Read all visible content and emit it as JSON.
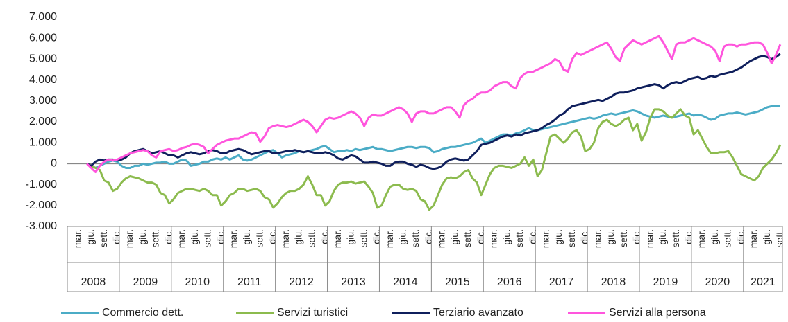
{
  "chart_data": {
    "type": "line",
    "categories": [
      null,
      null,
      "mar.",
      null,
      null,
      "giu.",
      null,
      null,
      "sett.",
      null,
      null,
      "dic.",
      null,
      null,
      "mar.",
      null,
      null,
      "giu.",
      null,
      null,
      "sett.",
      null,
      null,
      "dic.",
      null,
      null,
      "mar.",
      null,
      null,
      "giu.",
      null,
      null,
      "sett.",
      null,
      null,
      "dic.",
      null,
      null,
      "mar.",
      null,
      null,
      "giu.",
      null,
      null,
      "sett.",
      null,
      null,
      "dic.",
      null,
      null,
      "mar.",
      null,
      null,
      "giu.",
      null,
      null,
      "sett.",
      null,
      null,
      "dic.",
      null,
      null,
      "mar.",
      null,
      null,
      "giu.",
      null,
      null,
      "sett.",
      null,
      null,
      "dic.",
      null,
      null,
      "mar.",
      null,
      null,
      "giu.",
      null,
      null,
      "sett.",
      null,
      null,
      "dic.",
      null,
      null,
      "mar.",
      null,
      null,
      "giu.",
      null,
      null,
      "sett.",
      null,
      null,
      "dic.",
      null,
      null,
      "mar.",
      null,
      null,
      "giu.",
      null,
      null,
      "sett.",
      null,
      null,
      "dic.",
      null,
      null,
      "mar.",
      null,
      null,
      "giu.",
      null,
      null,
      "sett.",
      null,
      null,
      "dic.",
      null,
      null,
      "mar.",
      null,
      null,
      "giu.",
      null,
      null,
      "sett.",
      null,
      null,
      "dic.",
      null,
      null,
      "mar.",
      null,
      null,
      "giu.",
      null,
      null,
      "sett.",
      null,
      null,
      "dic.",
      null,
      null,
      "mar.",
      null,
      null,
      "giu.",
      null,
      null,
      "sett.",
      null,
      null,
      "dic.",
      null,
      null,
      "mar.",
      null,
      null,
      "giu.",
      null,
      null,
      "sett."
    ],
    "x_groups": [
      "2008",
      "2009",
      "2010",
      "2011",
      "2012",
      "2013",
      "2014",
      "2015",
      "2016",
      "2017",
      "2018",
      "2019",
      "2020",
      "2021"
    ],
    "ylim": [
      -3000,
      7000
    ],
    "yticks": [
      {
        "value": -3000,
        "label": "-3.000"
      },
      {
        "value": -2000,
        "label": "-2.000"
      },
      {
        "value": -1000,
        "label": "-1.000"
      },
      0,
      {
        "value": 1000,
        "label": "1.000"
      },
      {
        "value": 2000,
        "label": "2.000"
      },
      {
        "value": 3000,
        "label": "3.000"
      },
      {
        "value": 4000,
        "label": "4.000"
      },
      {
        "value": 5000,
        "label": "5.000"
      },
      {
        "value": 6000,
        "label": "6.000"
      },
      {
        "value": 7000,
        "label": "7.000"
      }
    ],
    "negative_tick_color": "#ff0000",
    "grid": false,
    "legend": "bottom",
    "series": [
      {
        "name": "Commercio dett.",
        "color": "#4bacc6",
        "values": [
          null,
          null,
          null,
          null,
          0,
          -100,
          -200,
          -100,
          0,
          100,
          150,
          100,
          -100,
          -200,
          -200,
          -100,
          -100,
          0,
          -50,
          0,
          50,
          50,
          100,
          0,
          0,
          100,
          200,
          150,
          -100,
          -50,
          0,
          100,
          100,
          200,
          250,
          200,
          300,
          200,
          300,
          400,
          200,
          150,
          200,
          300,
          400,
          500,
          600,
          650,
          500,
          300,
          400,
          450,
          500,
          600,
          550,
          600,
          650,
          700,
          800,
          850,
          700,
          550,
          600,
          600,
          650,
          600,
          700,
          650,
          700,
          750,
          800,
          700,
          700,
          650,
          600,
          650,
          700,
          750,
          800,
          800,
          750,
          800,
          800,
          750,
          550,
          600,
          700,
          750,
          800,
          800,
          850,
          900,
          950,
          1000,
          1100,
          1200,
          1000,
          1100,
          1200,
          1300,
          1400,
          1400,
          1350,
          1450,
          1500,
          1600,
          1700,
          1600,
          1600,
          1650,
          1700,
          1750,
          1800,
          1850,
          1900,
          1950,
          2000,
          2050,
          2100,
          2150,
          2200,
          2150,
          2200,
          2300,
          2350,
          2400,
          2350,
          2400,
          2450,
          2500,
          2550,
          2500,
          2400,
          2300,
          2250,
          2200,
          2250,
          2300,
          2250,
          2200,
          2250,
          2300,
          2350,
          2400,
          2300,
          2350,
          2300,
          2200,
          2100,
          2150,
          2300,
          2350,
          2400,
          2400,
          2450,
          2400,
          2350,
          2400,
          2450,
          2500,
          2600,
          2700,
          2750,
          2750,
          2750
        ]
      },
      {
        "name": "Servizi turistici",
        "color": "#8cbb4e",
        "values": [
          null,
          null,
          null,
          null,
          0,
          -100,
          -200,
          -300,
          -800,
          -900,
          -1300,
          -1200,
          -900,
          -700,
          -600,
          -650,
          -700,
          -800,
          -900,
          -900,
          -1000,
          -1400,
          -1500,
          -1900,
          -1700,
          -1400,
          -1300,
          -1200,
          -1200,
          -1250,
          -1300,
          -1200,
          -1300,
          -1500,
          -1500,
          -2000,
          -1800,
          -1500,
          -1400,
          -1200,
          -1200,
          -1300,
          -1250,
          -1200,
          -1300,
          -1600,
          -1700,
          -2100,
          -1900,
          -1600,
          -1400,
          -1300,
          -1300,
          -1200,
          -1000,
          -600,
          -1000,
          -1500,
          -1500,
          -2000,
          -1800,
          -1300,
          -1000,
          -900,
          -900,
          -850,
          -950,
          -900,
          -850,
          -1100,
          -1400,
          -2100,
          -2000,
          -1500,
          -1100,
          -1000,
          -1000,
          -1200,
          -1250,
          -1200,
          -1300,
          -1700,
          -1800,
          -2200,
          -2000,
          -1500,
          -1000,
          -700,
          -650,
          -700,
          -600,
          -400,
          -300,
          -700,
          -900,
          -1500,
          -1000,
          -500,
          -200,
          -100,
          -100,
          -150,
          -200,
          -100,
          0,
          300,
          -100,
          200,
          -600,
          -300,
          500,
          1300,
          1400,
          1200,
          1000,
          1200,
          1500,
          1600,
          1300,
          600,
          700,
          1000,
          1700,
          2000,
          2100,
          1900,
          1800,
          1900,
          2100,
          2200,
          1600,
          1900,
          1100,
          1500,
          2200,
          2600,
          2600,
          2500,
          2300,
          2200,
          2400,
          2600,
          2300,
          2200,
          1400,
          1600,
          1200,
          800,
          500,
          500,
          550,
          550,
          600,
          300,
          -100,
          -500,
          -600,
          -700,
          -800,
          -600,
          -200,
          0,
          200,
          500,
          900
        ]
      },
      {
        "name": "Terziario avanzato",
        "color": "#0f1f5c",
        "values": [
          null,
          null,
          null,
          null,
          0,
          -100,
          100,
          200,
          150,
          200,
          200,
          150,
          200,
          300,
          500,
          600,
          650,
          700,
          600,
          500,
          550,
          600,
          500,
          400,
          400,
          300,
          400,
          500,
          550,
          500,
          450,
          500,
          600,
          650,
          600,
          500,
          500,
          600,
          650,
          700,
          650,
          550,
          450,
          500,
          550,
          600,
          600,
          500,
          500,
          550,
          600,
          600,
          650,
          600,
          550,
          600,
          550,
          500,
          500,
          550,
          500,
          400,
          250,
          200,
          300,
          400,
          350,
          200,
          50,
          50,
          100,
          50,
          0,
          -100,
          -100,
          50,
          100,
          100,
          0,
          -50,
          -150,
          -50,
          -100,
          -200,
          -250,
          -200,
          -100,
          100,
          200,
          250,
          200,
          150,
          200,
          400,
          600,
          900,
          950,
          1000,
          1100,
          1200,
          1300,
          1350,
          1300,
          1400,
          1350,
          1450,
          1500,
          1550,
          1600,
          1700,
          1850,
          1950,
          2100,
          2300,
          2400,
          2600,
          2750,
          2800,
          2850,
          2900,
          2950,
          3000,
          3050,
          3000,
          3100,
          3200,
          3350,
          3400,
          3400,
          3450,
          3500,
          3600,
          3650,
          3700,
          3750,
          3800,
          3750,
          3600,
          3750,
          3850,
          3900,
          3850,
          3950,
          4050,
          4100,
          4150,
          4050,
          4100,
          4200,
          4150,
          4250,
          4300,
          4350,
          4400,
          4500,
          4600,
          4750,
          4900,
          5000,
          5100,
          5150,
          5100,
          5000,
          5100,
          5250
        ]
      },
      {
        "name": "Servizi alla persona",
        "color": "#ff55dd",
        "values": [
          null,
          null,
          null,
          null,
          0,
          -200,
          -400,
          -100,
          100,
          200,
          150,
          200,
          300,
          400,
          500,
          550,
          600,
          650,
          600,
          400,
          300,
          600,
          650,
          700,
          600,
          650,
          750,
          800,
          900,
          950,
          900,
          800,
          500,
          700,
          900,
          1000,
          1100,
          1150,
          1200,
          1200,
          1300,
          1400,
          1500,
          1450,
          1050,
          1300,
          1700,
          1800,
          1850,
          1800,
          1750,
          1800,
          1900,
          2000,
          2100,
          2000,
          1800,
          1500,
          1800,
          2100,
          2200,
          2150,
          2200,
          2300,
          2400,
          2500,
          2400,
          2200,
          1800,
          2200,
          2350,
          2300,
          2300,
          2400,
          2500,
          2600,
          2700,
          2600,
          2400,
          2000,
          2400,
          2500,
          2500,
          2400,
          2400,
          2500,
          2600,
          2700,
          2700,
          2500,
          2200,
          2800,
          3000,
          3100,
          3300,
          3400,
          3400,
          3500,
          3700,
          3800,
          3900,
          3900,
          3700,
          3600,
          4100,
          4300,
          4400,
          4400,
          4500,
          4600,
          4700,
          4800,
          5000,
          4900,
          4500,
          4400,
          5000,
          5300,
          5200,
          5300,
          5400,
          5500,
          5600,
          5700,
          5800,
          5500,
          5100,
          4900,
          5500,
          5700,
          5900,
          5800,
          5700,
          5800,
          5900,
          6000,
          6100,
          5800,
          5400,
          5000,
          5700,
          5800,
          5800,
          5900,
          6000,
          5900,
          5800,
          5700,
          5600,
          5400,
          4900,
          5600,
          5700,
          5700,
          5600,
          5700,
          5700,
          5750,
          5800,
          5800,
          5700,
          5300,
          4800,
          5200,
          5700
        ]
      }
    ]
  }
}
